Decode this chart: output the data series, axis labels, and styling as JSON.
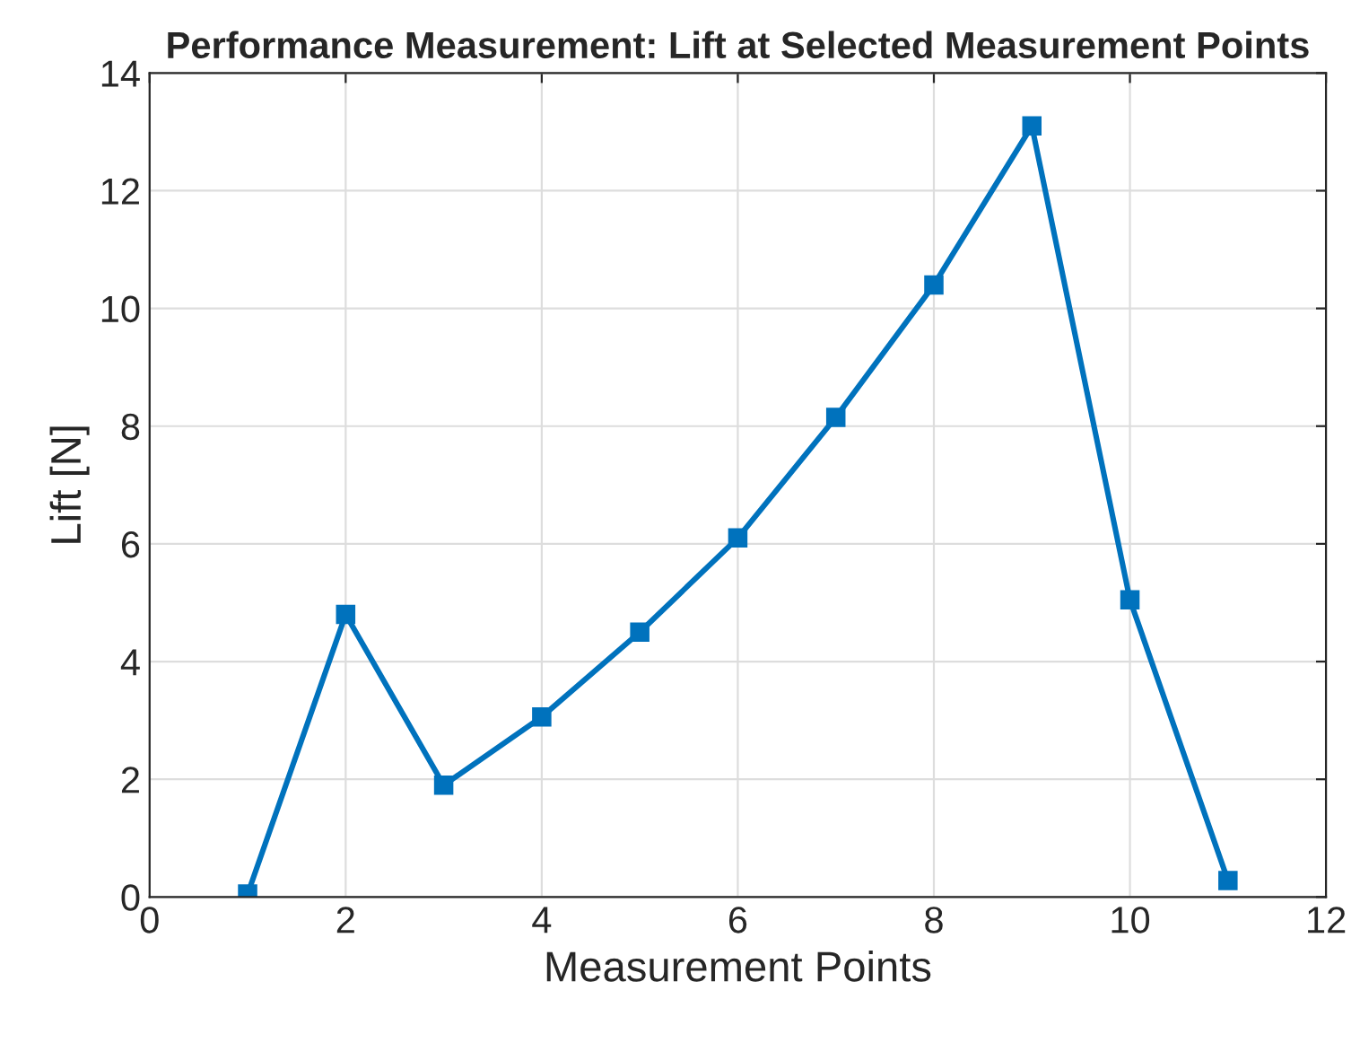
{
  "chart_data": {
    "type": "line",
    "title": "Performance Measurement: Lift at Selected Measurement Points",
    "xlabel": "Measurement Points",
    "ylabel": "Lift [N]",
    "x": [
      1,
      2,
      3,
      4,
      5,
      6,
      7,
      8,
      9,
      10,
      11
    ],
    "series": [
      {
        "color": "#0072bd",
        "values": [
          0.05,
          4.8,
          1.9,
          3.06,
          4.5,
          6.1,
          8.15,
          10.4,
          13.1,
          5.05,
          0.28
        ]
      }
    ],
    "xlim": [
      0,
      12
    ],
    "xticks": [
      0,
      2,
      4,
      6,
      8,
      10,
      12
    ],
    "ylim": [
      0,
      14
    ],
    "yticks": [
      0,
      2,
      4,
      6,
      8,
      10,
      12,
      14
    ],
    "grid": true,
    "marker": "square",
    "line_style": "solid"
  }
}
